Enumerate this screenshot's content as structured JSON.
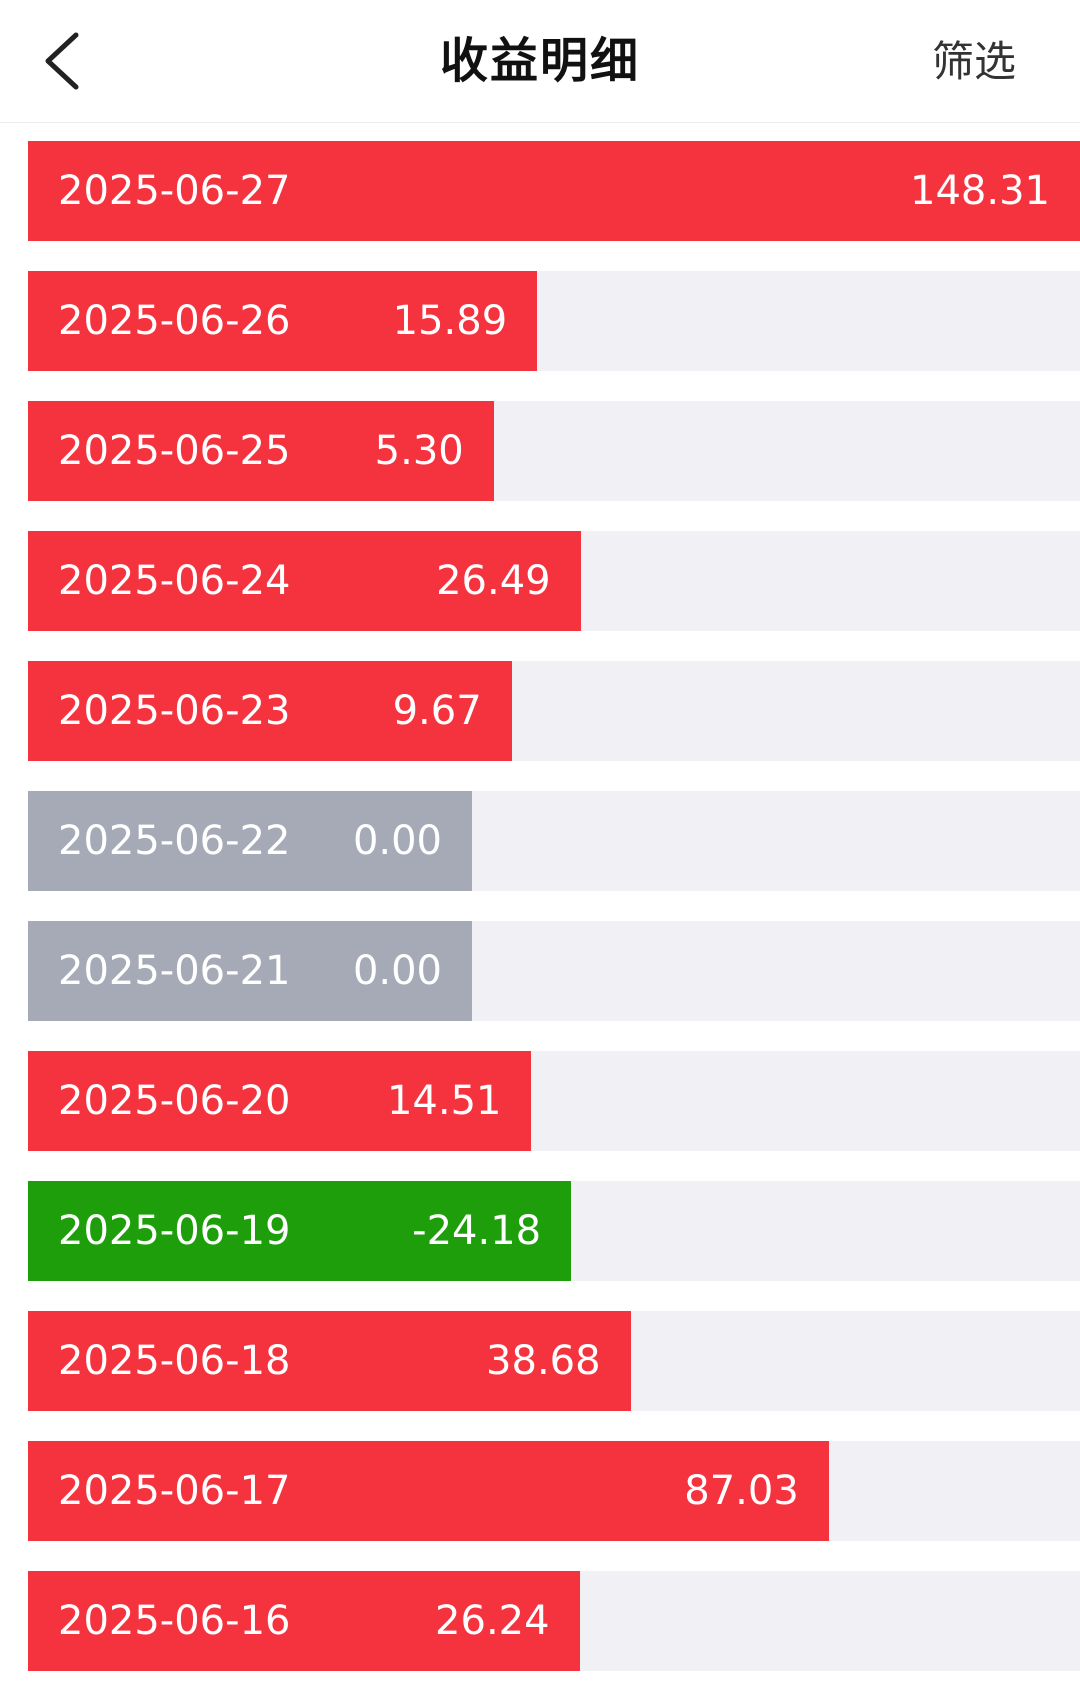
{
  "header": {
    "title": "收益明细",
    "filter_label": "筛选",
    "back_icon": "chevron-left-icon"
  },
  "colors": {
    "positive": "#f5333f",
    "negative": "#1e9e0b",
    "zero": "#a6aab6",
    "track": "#f1f1f5"
  },
  "chart_data": {
    "type": "bar",
    "orientation": "horizontal",
    "categories": [
      "2025-06-27",
      "2025-06-26",
      "2025-06-25",
      "2025-06-24",
      "2025-06-23",
      "2025-06-22",
      "2025-06-21",
      "2025-06-20",
      "2025-06-19",
      "2025-06-18",
      "2025-06-17",
      "2025-06-16"
    ],
    "values": [
      148.31,
      15.89,
      5.3,
      26.49,
      9.67,
      0.0,
      0.0,
      14.51,
      -24.18,
      38.68,
      87.03,
      26.24
    ],
    "labels": [
      "148.31",
      "15.89",
      "5.30",
      "26.49",
      "9.67",
      "0.00",
      "0.00",
      "14.51",
      "-24.18",
      "38.68",
      "87.03",
      "26.24"
    ]
  }
}
